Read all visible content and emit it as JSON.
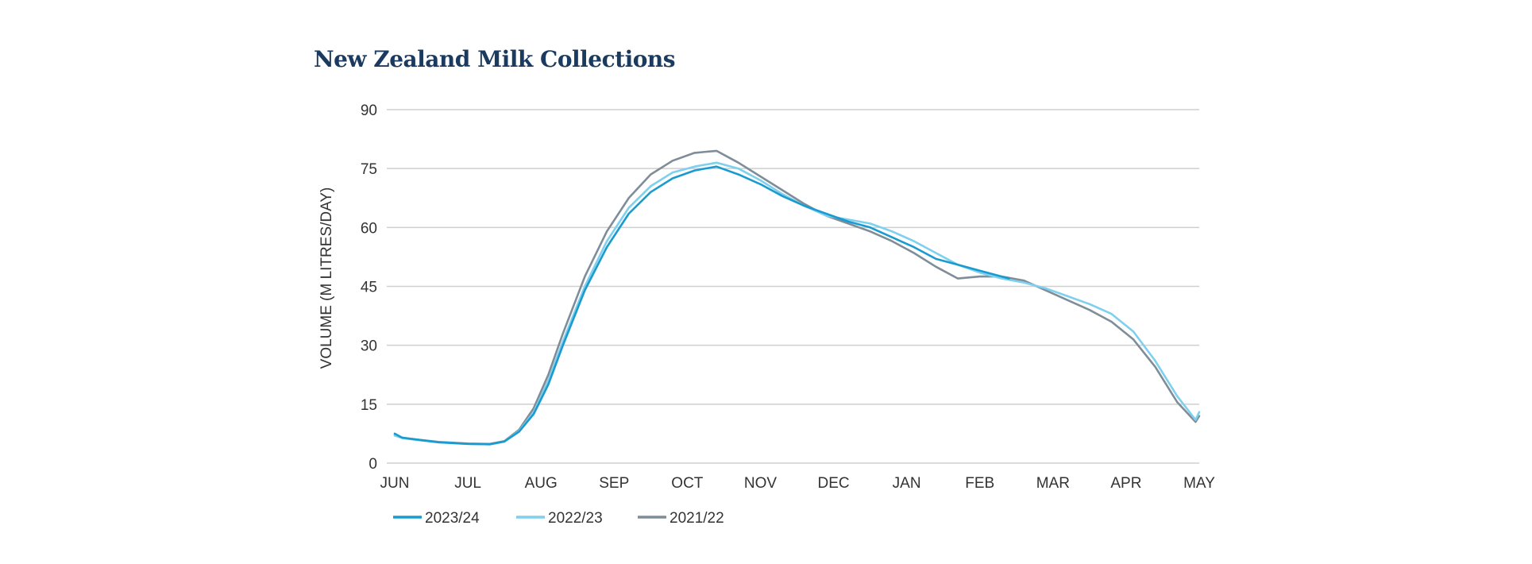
{
  "chart_data": {
    "type": "line",
    "title": "New Zealand Milk Collections",
    "xlabel": "",
    "ylabel": "VOLUME (M LITRES/DAY)",
    "ylim": [
      0,
      90
    ],
    "yticks": [
      0,
      15,
      30,
      45,
      60,
      75,
      90
    ],
    "categories": [
      "JUN",
      "JUL",
      "AUG",
      "SEP",
      "OCT",
      "NOV",
      "DEC",
      "JAN",
      "FEB",
      "MAR",
      "APR",
      "MAY"
    ],
    "grid": true,
    "legend": "bottom-left",
    "series": [
      {
        "name": "2023/24",
        "color": "#1a9bd0",
        "x": [
          0,
          0.1,
          0.3,
          0.6,
          1.0,
          1.3,
          1.5,
          1.7,
          1.9,
          2.1,
          2.3,
          2.6,
          2.9,
          3.2,
          3.5,
          3.8,
          4.1,
          4.4,
          4.7,
          5.0,
          5.3,
          5.6,
          5.9,
          6.2,
          6.5,
          6.8,
          7.1,
          7.4,
          7.7,
          8.0,
          8.4
        ],
        "values": [
          7.5,
          6.5,
          6.0,
          5.3,
          4.9,
          4.8,
          5.5,
          8.0,
          12.5,
          20.0,
          30.0,
          44.0,
          55.0,
          63.5,
          69.0,
          72.5,
          74.5,
          75.5,
          73.5,
          71.0,
          68.0,
          65.5,
          63.5,
          61.5,
          60.0,
          57.5,
          55.0,
          52.0,
          50.5,
          49.0,
          47.0
        ]
      },
      {
        "name": "2022/23",
        "color": "#7fcfee",
        "x": [
          0,
          0.1,
          0.3,
          0.6,
          1.0,
          1.3,
          1.5,
          1.7,
          1.9,
          2.1,
          2.3,
          2.6,
          2.9,
          3.2,
          3.5,
          3.8,
          4.1,
          4.4,
          4.7,
          5.0,
          5.3,
          5.6,
          5.9,
          6.2,
          6.5,
          6.8,
          7.1,
          7.4,
          7.7,
          8.0,
          8.3,
          8.6,
          8.9,
          9.2,
          9.5,
          9.8,
          10.1,
          10.4,
          10.7,
          10.95,
          11.0
        ],
        "values": [
          7.0,
          6.4,
          5.9,
          5.3,
          4.9,
          4.8,
          5.5,
          8.2,
          13.0,
          21.0,
          31.0,
          45.0,
          56.5,
          65.0,
          70.5,
          74.0,
          75.5,
          76.5,
          75.0,
          72.0,
          68.5,
          65.5,
          63.0,
          62.0,
          61.0,
          59.0,
          56.5,
          53.5,
          50.5,
          48.5,
          47.0,
          46.0,
          44.5,
          42.5,
          40.5,
          38.0,
          33.5,
          26.0,
          17.0,
          11.0,
          13.0
        ]
      },
      {
        "name": "2021/22",
        "color": "#7f8d99",
        "x": [
          0,
          0.1,
          0.3,
          0.6,
          1.0,
          1.3,
          1.5,
          1.7,
          1.9,
          2.1,
          2.3,
          2.6,
          2.9,
          3.2,
          3.5,
          3.8,
          4.1,
          4.4,
          4.7,
          5.0,
          5.3,
          5.6,
          5.9,
          6.2,
          6.5,
          6.8,
          7.1,
          7.4,
          7.7,
          8.0,
          8.3,
          8.6,
          8.9,
          9.2,
          9.5,
          9.8,
          10.1,
          10.4,
          10.7,
          10.95,
          11.0
        ],
        "values": [
          7.2,
          6.5,
          6.0,
          5.4,
          5.0,
          4.9,
          5.6,
          8.5,
          14.0,
          22.5,
          33.0,
          47.5,
          59.0,
          67.5,
          73.5,
          77.0,
          79.0,
          79.5,
          76.5,
          73.0,
          69.5,
          66.0,
          63.0,
          61.0,
          59.0,
          56.5,
          53.5,
          50.0,
          47.0,
          47.5,
          47.5,
          46.5,
          44.0,
          41.5,
          39.0,
          36.0,
          31.5,
          24.5,
          15.5,
          10.5,
          12.0
        ]
      }
    ]
  }
}
